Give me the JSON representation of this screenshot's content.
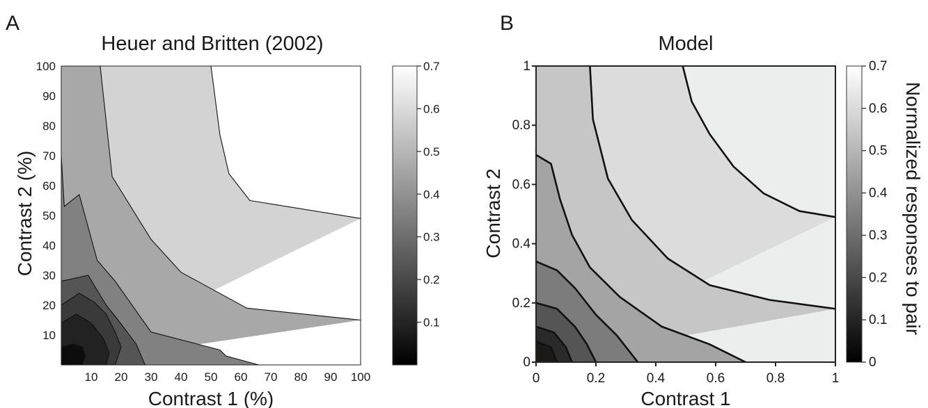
{
  "chart_data": [
    {
      "panel_label": "A",
      "type": "heatmap",
      "title": "Heuer and Britten (2002)",
      "xlabel": "Contrast 1 (%)",
      "ylabel": "Contrast 2 (%)",
      "xlim": [
        0,
        100
      ],
      "ylim": [
        0,
        100
      ],
      "x_ticks": [
        "10",
        "20",
        "30",
        "40",
        "50",
        "60",
        "70",
        "80",
        "90",
        "100"
      ],
      "y_ticks": [
        "10",
        "20",
        "30",
        "40",
        "50",
        "60",
        "70",
        "80",
        "90",
        "100"
      ],
      "colorbar": {
        "min": 0,
        "max": 0.7,
        "ticks": [
          "0.1",
          "0.2",
          "0.3",
          "0.4",
          "0.5",
          "0.6",
          "0.7"
        ]
      },
      "contour_levels": [
        0.1,
        0.2,
        0.3,
        0.4,
        0.5,
        0.6
      ],
      "band_grays": [
        "#222222",
        "#3a3a3a",
        "#555555",
        "#818181",
        "#a8a8a8",
        "#d3d3d3",
        "#ffffff"
      ],
      "contours": [
        {
          "level": 0.6,
          "points": [
            [
              50,
              100
            ],
            [
              53,
              77
            ],
            [
              56,
              64
            ],
            [
              63,
              55
            ],
            [
              100,
              49
            ]
          ]
        },
        {
          "level": 0.5,
          "points": [
            [
              13,
              100
            ],
            [
              17,
              63
            ],
            [
              30,
              42
            ],
            [
              40,
              31
            ],
            [
              62,
              19
            ],
            [
              100,
              15
            ]
          ]
        },
        {
          "level": 0.4,
          "points": [
            [
              0,
              70
            ],
            [
              1,
              53
            ],
            [
              6,
              57
            ],
            [
              12,
              35
            ],
            [
              18,
              28
            ],
            [
              30,
              11
            ],
            [
              53,
              5
            ],
            [
              55,
              3
            ],
            [
              66,
              0
            ]
          ]
        },
        {
          "level": 0.3,
          "points": [
            [
              0,
              28
            ],
            [
              9,
              30
            ],
            [
              12,
              25
            ],
            [
              15,
              20
            ],
            [
              19,
              15
            ],
            [
              25,
              7
            ],
            [
              28,
              0
            ]
          ]
        },
        {
          "level": 0.2,
          "points": [
            [
              0,
              20
            ],
            [
              6,
              24
            ],
            [
              11,
              21
            ],
            [
              15,
              17
            ],
            [
              18,
              11
            ],
            [
              20,
              6
            ],
            [
              18,
              0
            ]
          ]
        },
        {
          "level": 0.1,
          "points": [
            [
              0,
              14
            ],
            [
              5,
              17
            ],
            [
              10,
              14
            ],
            [
              14,
              9
            ],
            [
              16,
              4
            ],
            [
              15,
              0
            ]
          ]
        },
        {
          "level": 0.05,
          "points": [
            [
              0,
              6
            ],
            [
              4,
              7
            ],
            [
              7,
              6
            ],
            [
              8,
              3
            ],
            [
              7,
              0
            ]
          ]
        }
      ]
    },
    {
      "panel_label": "B",
      "type": "heatmap",
      "title": "Model",
      "xlabel": "Contrast 1",
      "ylabel": "Contrast 2",
      "xlim": [
        0,
        1
      ],
      "ylim": [
        0,
        1
      ],
      "x_ticks": [
        "0",
        "0.2",
        "0.4",
        "0.6",
        "0.8",
        "1"
      ],
      "y_ticks": [
        "0",
        "0.2",
        "0.4",
        "0.6",
        "0.8",
        "1"
      ],
      "colorbar": {
        "min": 0,
        "max": 0.7,
        "label": "Normalized responses to pair",
        "ticks": [
          "0",
          "0.1",
          "0.2",
          "0.3",
          "0.4",
          "0.5",
          "0.6",
          "0.7"
        ]
      },
      "contour_levels": [
        0.1,
        0.2,
        0.3,
        0.4,
        0.5,
        0.6
      ],
      "band_grays": [
        "#2a2a2a",
        "#555555",
        "#7c7c7c",
        "#a4a4a4",
        "#c6c6c6",
        "#dcdcdc",
        "#eceeee"
      ],
      "contours": [
        {
          "level": 0.6,
          "points": [
            [
              0.49,
              1.0
            ],
            [
              0.52,
              0.88
            ],
            [
              0.58,
              0.77
            ],
            [
              0.66,
              0.66
            ],
            [
              0.76,
              0.57
            ],
            [
              0.88,
              0.51
            ],
            [
              1.0,
              0.49
            ]
          ]
        },
        {
          "level": 0.5,
          "points": [
            [
              0.18,
              1.0
            ],
            [
              0.19,
              0.82
            ],
            [
              0.24,
              0.62
            ],
            [
              0.32,
              0.48
            ],
            [
              0.44,
              0.35
            ],
            [
              0.58,
              0.26
            ],
            [
              0.78,
              0.21
            ],
            [
              1.0,
              0.18
            ]
          ]
        },
        {
          "level": 0.4,
          "points": [
            [
              0.0,
              0.7
            ],
            [
              0.05,
              0.67
            ],
            [
              0.08,
              0.55
            ],
            [
              0.12,
              0.43
            ],
            [
              0.18,
              0.32
            ],
            [
              0.28,
              0.22
            ],
            [
              0.42,
              0.12
            ],
            [
              0.58,
              0.06
            ],
            [
              0.7,
              0.0
            ]
          ]
        },
        {
          "level": 0.3,
          "points": [
            [
              0.0,
              0.34
            ],
            [
              0.07,
              0.31
            ],
            [
              0.13,
              0.25
            ],
            [
              0.2,
              0.16
            ],
            [
              0.27,
              0.09
            ],
            [
              0.34,
              0.0
            ]
          ]
        },
        {
          "level": 0.2,
          "points": [
            [
              0.0,
              0.2
            ],
            [
              0.07,
              0.18
            ],
            [
              0.13,
              0.12
            ],
            [
              0.17,
              0.06
            ],
            [
              0.2,
              0.0
            ]
          ]
        },
        {
          "level": 0.1,
          "points": [
            [
              0.0,
              0.12
            ],
            [
              0.06,
              0.1
            ],
            [
              0.1,
              0.05
            ],
            [
              0.12,
              0.0
            ]
          ]
        },
        {
          "level": 0.05,
          "points": [
            [
              0.0,
              0.07
            ],
            [
              0.05,
              0.05
            ],
            [
              0.07,
              0.0
            ]
          ]
        }
      ]
    }
  ]
}
